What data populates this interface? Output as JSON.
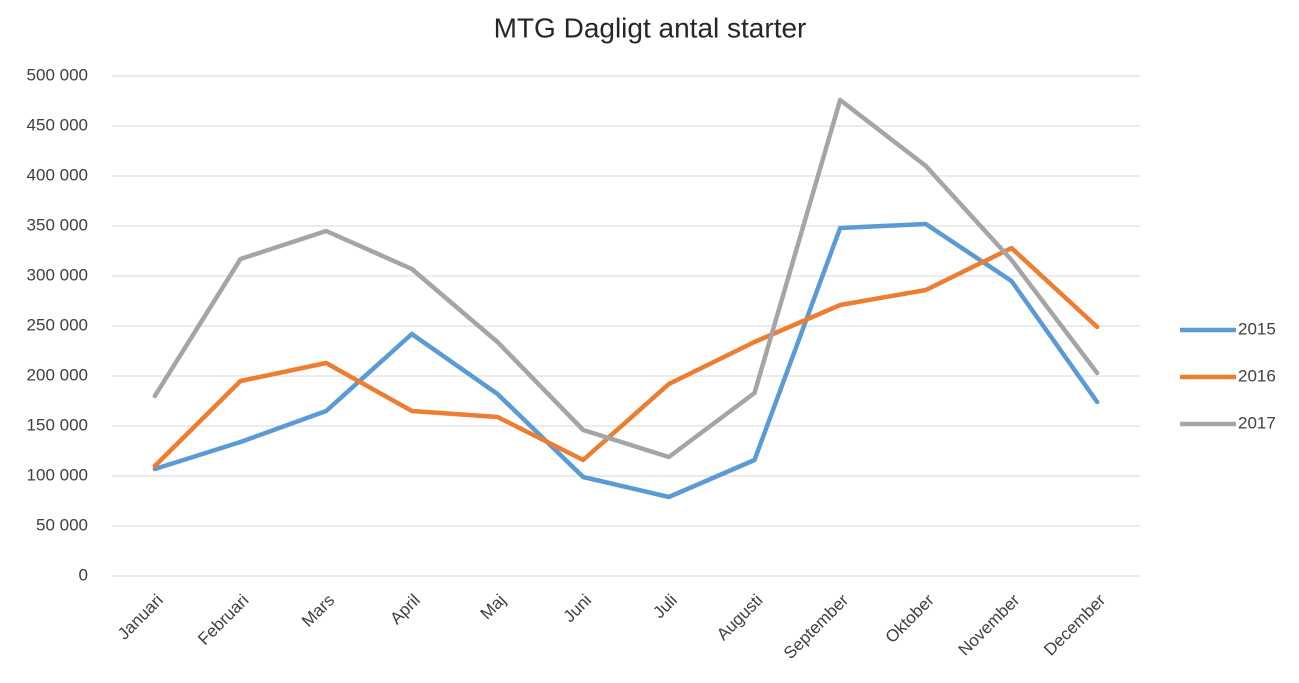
{
  "chart_data": {
    "type": "line",
    "title": "MTG Dagligt antal starter",
    "categories": [
      "Januari",
      "Februari",
      "Mars",
      "April",
      "Maj",
      "Juni",
      "Juli",
      "Augusti",
      "September",
      "Oktober",
      "November",
      "December"
    ],
    "series": [
      {
        "name": "2015",
        "color": "#5b9bd5",
        "values": [
          107000,
          134000,
          165000,
          242000,
          182000,
          99000,
          79000,
          116000,
          348000,
          352000,
          295000,
          174000
        ]
      },
      {
        "name": "2016",
        "color": "#ed7d31",
        "values": [
          110000,
          195000,
          213000,
          165000,
          159000,
          116000,
          192000,
          234000,
          271000,
          286000,
          328000,
          249000
        ]
      },
      {
        "name": "2017",
        "color": "#a5a5a5",
        "values": [
          180000,
          317000,
          345000,
          307000,
          234000,
          146000,
          119000,
          183000,
          476000,
          410000,
          316000,
          203000
        ]
      }
    ],
    "ylim": [
      0,
      500000
    ],
    "yticks": [
      0,
      {
        "value": 50000,
        "label": "50 000"
      },
      {
        "value": 100000,
        "label": "100 000"
      },
      {
        "value": 150000,
        "label": "150 000"
      },
      {
        "value": 200000,
        "label": "200 000"
      },
      {
        "value": 250000,
        "label": "250 000"
      },
      {
        "value": 300000,
        "label": "300 000"
      },
      {
        "value": 350000,
        "label": "350 000"
      },
      {
        "value": 400000,
        "label": "400 000"
      },
      {
        "value": 450000,
        "label": "450 000"
      },
      {
        "value": 500000,
        "label": "500 000"
      }
    ],
    "grid": true,
    "legend": "right"
  }
}
